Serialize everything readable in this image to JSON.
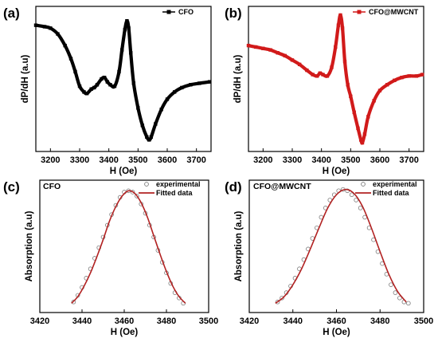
{
  "chart_data": [
    {
      "panel": "(a)",
      "type": "line",
      "title": "",
      "xlabel": "H (Oe)",
      "ylabel": "dP/dH (a.u)",
      "xlim": [
        3150,
        3750
      ],
      "ylim": [
        0,
        1
      ],
      "xticks": [
        3200,
        3300,
        3400,
        3500,
        3600,
        3700
      ],
      "y_tick_labels": false,
      "legend_position": "top-right",
      "series": [
        {
          "name": "CFO",
          "color": "#000000",
          "marker": "filled-square",
          "x": [
            3150,
            3180,
            3200,
            3225,
            3250,
            3270,
            3285,
            3300,
            3315,
            3325,
            3340,
            3350,
            3360,
            3375,
            3385,
            3395,
            3405,
            3420,
            3435,
            3445,
            3455,
            3462,
            3468,
            3475,
            3485,
            3500,
            3515,
            3530,
            3538,
            3545,
            3560,
            3580,
            3600,
            3625,
            3650,
            3680,
            3710,
            3745
          ],
          "values": [
            0.87,
            0.86,
            0.85,
            0.81,
            0.73,
            0.64,
            0.55,
            0.45,
            0.41,
            0.4,
            0.43,
            0.44,
            0.46,
            0.5,
            0.51,
            0.48,
            0.46,
            0.45,
            0.55,
            0.7,
            0.84,
            0.9,
            0.85,
            0.68,
            0.47,
            0.3,
            0.18,
            0.1,
            0.08,
            0.1,
            0.19,
            0.29,
            0.36,
            0.41,
            0.44,
            0.46,
            0.47,
            0.48
          ]
        }
      ]
    },
    {
      "panel": "(b)",
      "type": "line",
      "title": "",
      "xlabel": "H (Oe)",
      "ylabel": "dP/dH (a.u)",
      "xlim": [
        3150,
        3750
      ],
      "ylim": [
        0,
        1
      ],
      "xticks": [
        3200,
        3300,
        3400,
        3500,
        3600,
        3700
      ],
      "y_tick_labels": false,
      "legend_position": "top-right",
      "series": [
        {
          "name": "CFO@MWCNT",
          "color": "#d11a1a",
          "marker": "filled-square",
          "x": [
            3150,
            3175,
            3200,
            3225,
            3250,
            3275,
            3300,
            3325,
            3350,
            3370,
            3385,
            3395,
            3405,
            3420,
            3435,
            3448,
            3458,
            3465,
            3472,
            3480,
            3490,
            3500,
            3512,
            3525,
            3535,
            3540,
            3548,
            3560,
            3580,
            3600,
            3625,
            3650,
            3675,
            3700,
            3725,
            3745
          ],
          "values": [
            0.73,
            0.72,
            0.71,
            0.7,
            0.68,
            0.66,
            0.63,
            0.6,
            0.56,
            0.53,
            0.52,
            0.54,
            0.53,
            0.52,
            0.58,
            0.72,
            0.87,
            0.94,
            0.85,
            0.62,
            0.46,
            0.38,
            0.27,
            0.16,
            0.08,
            0.06,
            0.12,
            0.24,
            0.35,
            0.42,
            0.46,
            0.49,
            0.51,
            0.52,
            0.52,
            0.53
          ]
        }
      ]
    },
    {
      "panel": "(c)",
      "type": "line",
      "title": "CFO",
      "xlabel": "H (Oe)",
      "ylabel": "Absorption (a.u)",
      "xlim": [
        3420,
        3500
      ],
      "ylim": [
        0,
        1
      ],
      "xticks": [
        3420,
        3440,
        3460,
        3480,
        3500
      ],
      "y_tick_labels": false,
      "legend_position": "top-right",
      "series": [
        {
          "name": "experimental",
          "color": "#7a7a7a",
          "marker": "open-circle",
          "x": [
            3436,
            3438,
            3440,
            3442,
            3444,
            3446,
            3448,
            3450,
            3452,
            3454,
            3456,
            3458,
            3460,
            3462,
            3464,
            3466,
            3468,
            3470,
            3472,
            3474,
            3476,
            3478,
            3480,
            3482,
            3484,
            3486,
            3488
          ],
          "values": [
            0.08,
            0.13,
            0.19,
            0.26,
            0.33,
            0.41,
            0.49,
            0.57,
            0.66,
            0.74,
            0.81,
            0.87,
            0.91,
            0.92,
            0.91,
            0.88,
            0.82,
            0.75,
            0.66,
            0.57,
            0.47,
            0.38,
            0.3,
            0.22,
            0.15,
            0.11,
            0.07
          ]
        },
        {
          "name": "Fitted data",
          "color": "#b22222",
          "marker": "line",
          "x": [
            3435,
            3438,
            3441,
            3444,
            3447,
            3450,
            3453,
            3456,
            3459,
            3462,
            3465,
            3468,
            3471,
            3474,
            3477,
            3480,
            3483,
            3486,
            3489
          ],
          "values": [
            0.07,
            0.12,
            0.2,
            0.3,
            0.42,
            0.55,
            0.69,
            0.8,
            0.88,
            0.92,
            0.9,
            0.83,
            0.72,
            0.58,
            0.44,
            0.31,
            0.2,
            0.12,
            0.07
          ]
        }
      ]
    },
    {
      "panel": "(d)",
      "type": "line",
      "title": "CFO@MWCNT",
      "xlabel": "H (Oe)",
      "ylabel": "Absorption (a.u)",
      "xlim": [
        3420,
        3500
      ],
      "ylim": [
        0,
        1
      ],
      "xticks": [
        3420,
        3440,
        3460,
        3480,
        3500
      ],
      "y_tick_labels": false,
      "legend_position": "top-right",
      "series": [
        {
          "name": "experimental",
          "color": "#7a7a7a",
          "marker": "open-circle",
          "x": [
            3433,
            3435,
            3437,
            3439,
            3441,
            3443,
            3445,
            3447,
            3449,
            3451,
            3453,
            3455,
            3457,
            3459,
            3461,
            3463,
            3465,
            3467,
            3469,
            3471,
            3473,
            3475,
            3477,
            3479,
            3481,
            3483,
            3485,
            3487,
            3489,
            3491,
            3493
          ],
          "values": [
            0.08,
            0.11,
            0.15,
            0.2,
            0.26,
            0.33,
            0.4,
            0.48,
            0.56,
            0.64,
            0.72,
            0.79,
            0.85,
            0.89,
            0.92,
            0.93,
            0.92,
            0.89,
            0.85,
            0.79,
            0.72,
            0.64,
            0.55,
            0.46,
            0.37,
            0.29,
            0.21,
            0.15,
            0.11,
            0.08,
            0.07
          ]
        },
        {
          "name": "Fitted data",
          "color": "#b22222",
          "marker": "line",
          "x": [
            3432,
            3436,
            3440,
            3444,
            3448,
            3452,
            3456,
            3460,
            3464,
            3468,
            3472,
            3476,
            3480,
            3484,
            3488,
            3492
          ],
          "values": [
            0.07,
            0.12,
            0.21,
            0.33,
            0.48,
            0.64,
            0.79,
            0.89,
            0.93,
            0.9,
            0.8,
            0.64,
            0.46,
            0.29,
            0.16,
            0.08
          ]
        }
      ]
    }
  ]
}
